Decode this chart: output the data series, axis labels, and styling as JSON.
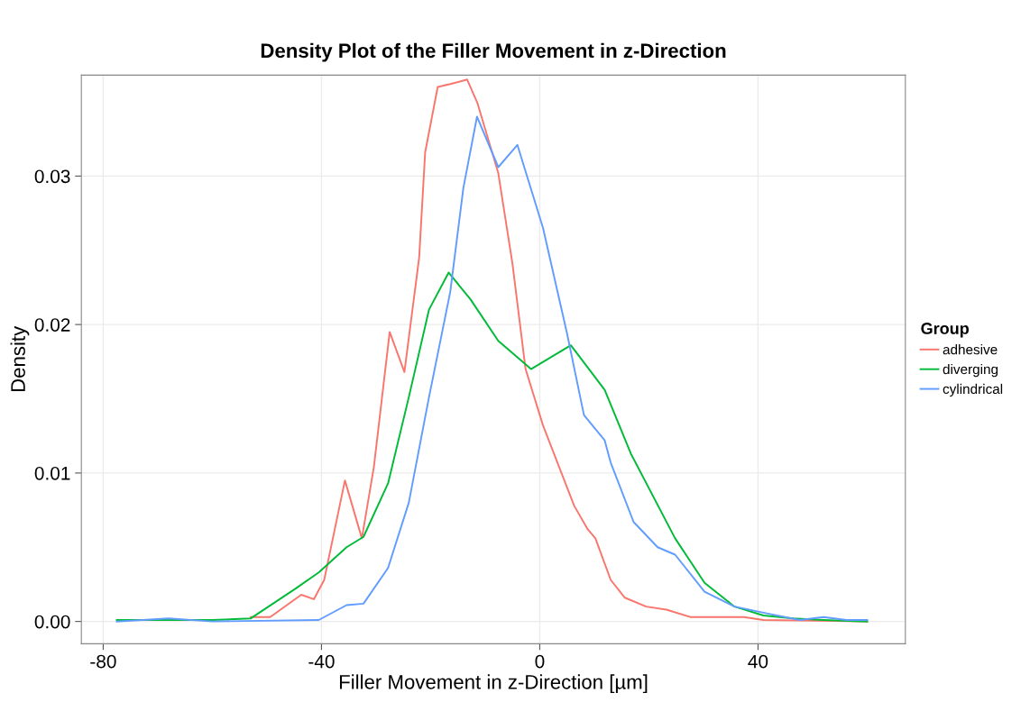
{
  "chart_data": {
    "type": "line",
    "title": "Density Plot of the Filler Movement in z-Direction",
    "xlabel": "Filler Movement in z-Direction [µm]",
    "ylabel": "Density",
    "legend_title": "Group",
    "legend": "right",
    "grid": true,
    "xlim": [
      -84,
      67
    ],
    "xticks": [
      -80,
      -40,
      0,
      40
    ],
    "ylim": [
      -0.0015,
      0.0368
    ],
    "yticks": [
      {
        "value": 0,
        "label": "0.00"
      },
      {
        "value": 0.01,
        "label": "0.01"
      },
      {
        "value": 0.02,
        "label": "0.02"
      },
      {
        "value": 0.03,
        "label": "0.03"
      }
    ],
    "series": [
      {
        "name": "adhesive",
        "color": "#f8766d",
        "x": [
          -53,
          -49.4,
          -43.7,
          -41.4,
          -39.5,
          -35.7,
          -32.6,
          -30.4,
          -27.5,
          -24.8,
          -22.1,
          -21,
          -18.7,
          -16.4,
          -13.3,
          -11.4,
          -7.6,
          -5,
          -2.6,
          0.6,
          6.3,
          8.8,
          10.2,
          13,
          15.6,
          19.5,
          23.2,
          27.6,
          37.4,
          41,
          60
        ],
        "values": [
          0.0003,
          0.0003,
          0.0018,
          0.0015,
          0.0028,
          0.0095,
          0.0056,
          0.0104,
          0.0195,
          0.0168,
          0.0245,
          0.0316,
          0.036,
          0.0362,
          0.0365,
          0.0349,
          0.0302,
          0.0241,
          0.017,
          0.0132,
          0.0078,
          0.0062,
          0.0056,
          0.0028,
          0.0016,
          0.001,
          0.0008,
          0.0003,
          0.0003,
          0.0001,
          0
        ]
      },
      {
        "name": "diverging",
        "color": "#00ba38",
        "x": [
          -77.5,
          -60,
          -53,
          -44.8,
          -40.5,
          -35.4,
          -32.3,
          -27.8,
          -24,
          -20.3,
          -16.7,
          -12.7,
          -7.6,
          -1.6,
          5.7,
          11.9,
          16.7,
          24.8,
          30.2,
          35.7,
          41,
          46.5,
          52,
          60
        ],
        "values": [
          0.0001,
          0.0001,
          0.0002,
          0.0022,
          0.0033,
          0.005,
          0.0057,
          0.0093,
          0.0151,
          0.021,
          0.0235,
          0.0217,
          0.0189,
          0.017,
          0.0186,
          0.0156,
          0.0113,
          0.0056,
          0.0026,
          0.001,
          0.0004,
          0.0002,
          0.0001,
          0
        ]
      },
      {
        "name": "cylindrical",
        "color": "#619cff",
        "x": [
          -77.5,
          -68,
          -60,
          -40.5,
          -35.4,
          -32.3,
          -27.8,
          -24,
          -20.3,
          -16.4,
          -14,
          -11.5,
          -7.6,
          -4.1,
          0.6,
          5,
          8.1,
          11.9,
          13,
          17.2,
          21.6,
          24.8,
          30.2,
          35.7,
          42.2,
          47.6,
          52,
          56.2,
          60
        ],
        "values": [
          0,
          0.0002,
          0,
          0.0001,
          0.0011,
          0.0012,
          0.0036,
          0.008,
          0.0151,
          0.0222,
          0.0292,
          0.034,
          0.0306,
          0.0321,
          0.0265,
          0.0194,
          0.0139,
          0.0122,
          0.0107,
          0.0067,
          0.005,
          0.0045,
          0.002,
          0.001,
          0.0005,
          0.0001,
          0.0003,
          0.0001,
          0.0001
        ]
      }
    ]
  }
}
